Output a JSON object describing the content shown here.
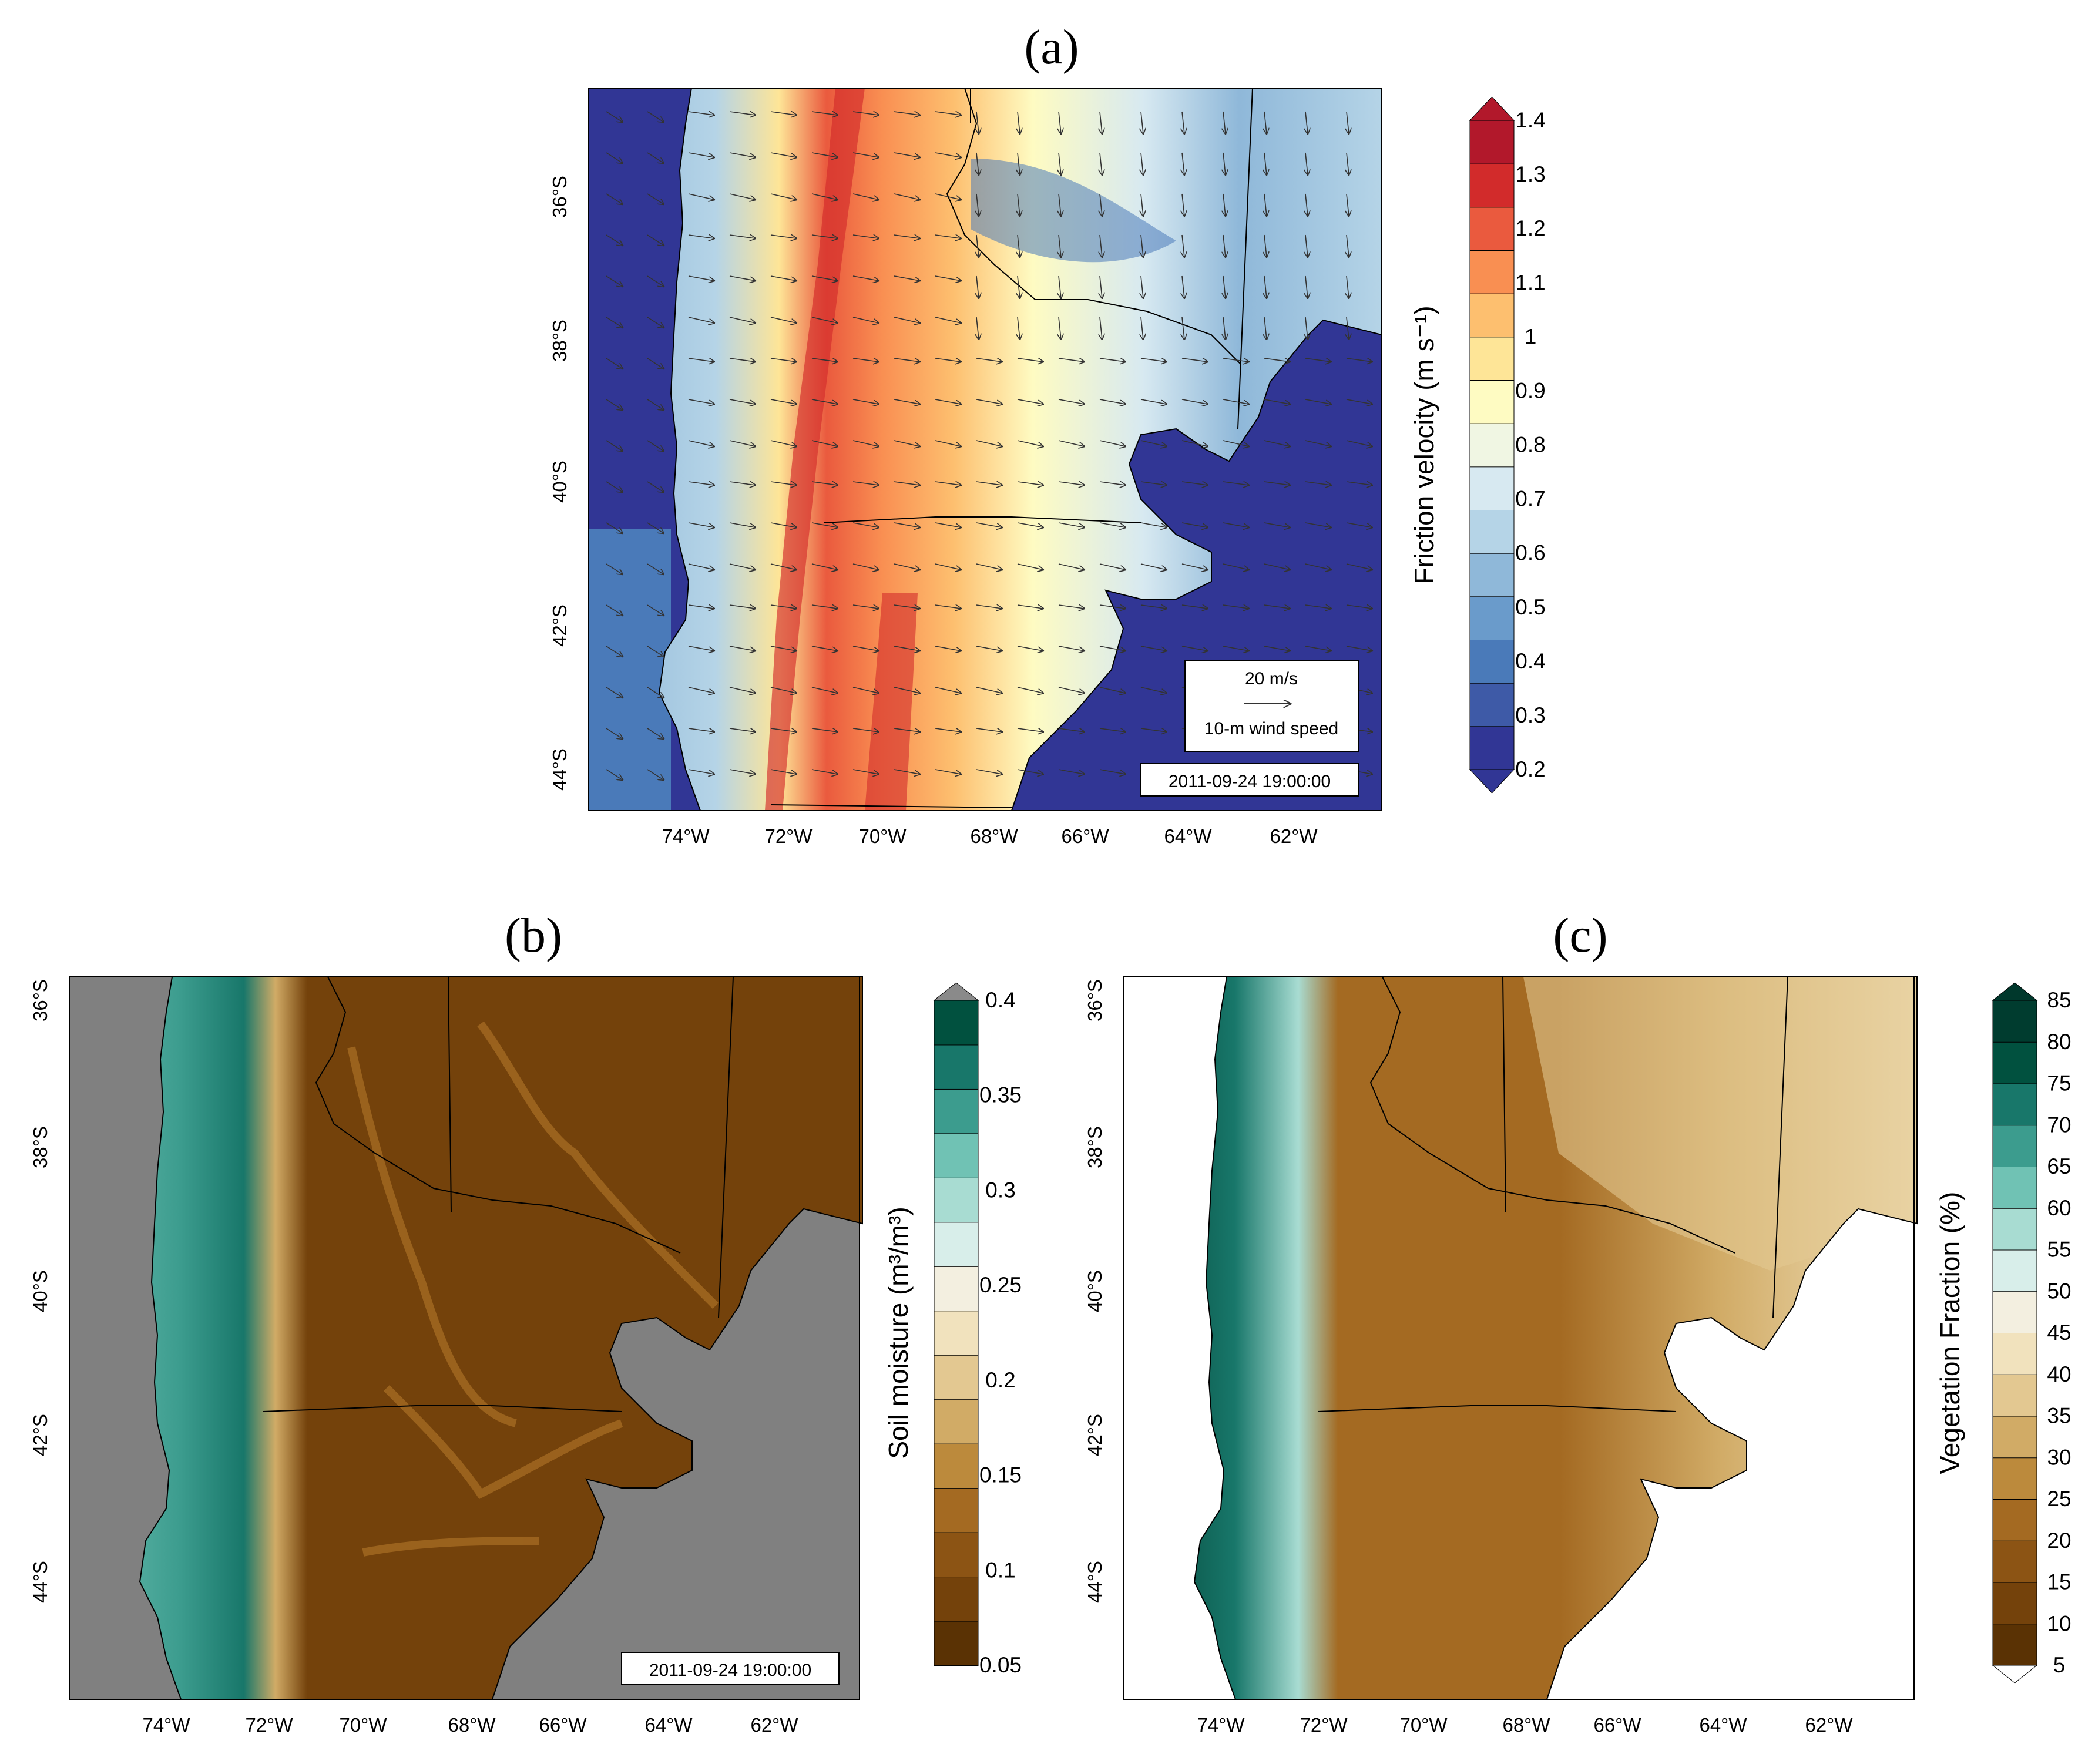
{
  "figure": {
    "panels": [
      {
        "id": "a",
        "letter": "(a)",
        "timestamp": "2011-09-24 19:00:00",
        "field": "friction-velocity",
        "wind_legend": {
          "speed_label": "20 m/s",
          "caption": "10-m wind speed"
        },
        "colorbar": {
          "label": "Friction velocity (m s⁻¹)",
          "ticks": [
            "1.4",
            "1.3",
            "1.2",
            "1.1",
            "1",
            "0.9",
            "0.8",
            "0.7",
            "0.6",
            "0.5",
            "0.4",
            "0.3",
            "0.2"
          ],
          "min": 0.2,
          "max": 1.4,
          "colors": [
            "#313695",
            "#3e5aa7",
            "#4a7ab9",
            "#6a9bcb",
            "#8fb8d9",
            "#b5d4e7",
            "#d7e9f1",
            "#f0f6e3",
            "#fefbc2",
            "#fee597",
            "#fdbf6f",
            "#f98f52",
            "#ea5a3e",
            "#d22b2b",
            "#b2182b"
          ],
          "extend_top": "#b2182b",
          "extend_bottom": "#313695"
        }
      },
      {
        "id": "b",
        "letter": "(b)",
        "timestamp": "2011-09-24 19:00:00",
        "field": "soil-moisture",
        "colorbar": {
          "label": "Soil moisture (m³/m³)",
          "ticks": [
            "0.4",
            "0.35",
            "0.3",
            "0.25",
            "0.2",
            "0.15",
            "0.1",
            "0.05"
          ],
          "min": 0.05,
          "max": 0.4,
          "colors": [
            "#5a3204",
            "#74420b",
            "#8c5414",
            "#a46a22",
            "#bc8a3c",
            "#d1ab66",
            "#e3c891",
            "#f1e2bd",
            "#f3efe0",
            "#d8eeea",
            "#a8dcd2",
            "#70c2b4",
            "#3c9c8e",
            "#18776a",
            "#01513f"
          ],
          "extend_top": "#8a8a8a"
        }
      },
      {
        "id": "c",
        "letter": "(c)",
        "field": "vegetation-fraction",
        "colorbar": {
          "label": "Vegetation Fraction (%)",
          "ticks": [
            "85",
            "80",
            "75",
            "70",
            "65",
            "60",
            "55",
            "50",
            "45",
            "40",
            "35",
            "30",
            "25",
            "20",
            "15",
            "10",
            "5"
          ],
          "min": 5,
          "max": 85,
          "colors": [
            "#5a3204",
            "#74420b",
            "#8c5414",
            "#a46a22",
            "#bc8a3c",
            "#d1ab66",
            "#e3c891",
            "#f1e2bd",
            "#f3efe0",
            "#d8eeea",
            "#a8dcd2",
            "#70c2b4",
            "#3c9c8e",
            "#18776a",
            "#01513f",
            "#003c2f"
          ],
          "extend_top": "#00382c",
          "extend_bottom": "#ffffff"
        }
      }
    ],
    "lat_labels": [
      "36°S",
      "38°S",
      "40°S",
      "42°S",
      "44°S"
    ],
    "lon_labels": [
      "74°W",
      "72°W",
      "70°W",
      "68°W",
      "66°W",
      "64°W",
      "62°W"
    ]
  }
}
